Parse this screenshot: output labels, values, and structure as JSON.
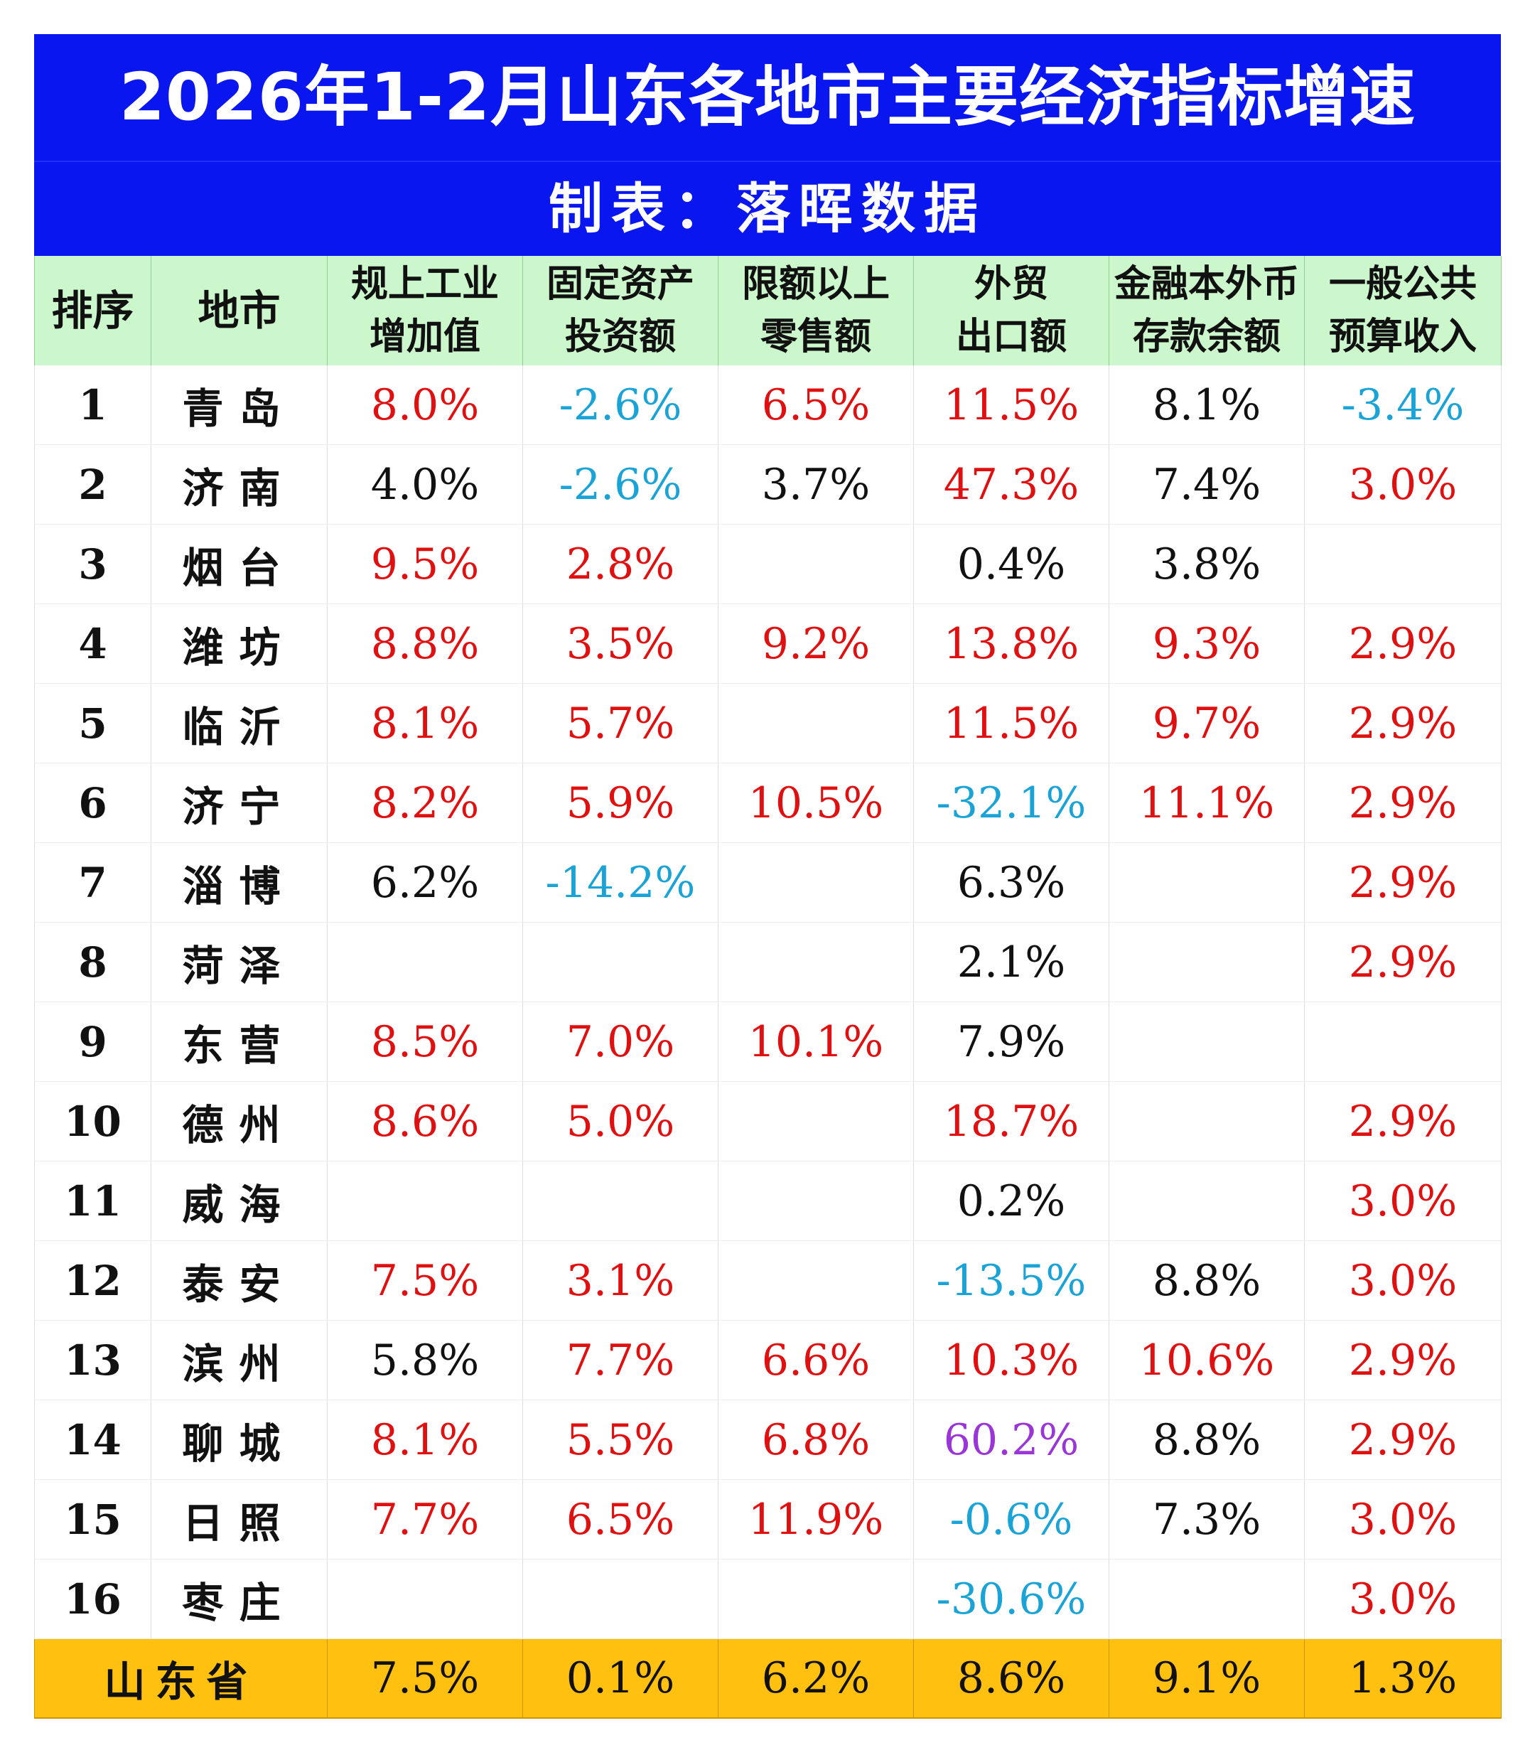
{
  "title": "2026年1-2月山东各地市主要经济指标增速",
  "subtitle": "制表：落晖数据",
  "colors": {
    "banner": "#0a16f0",
    "header": "#ccf7cc",
    "footer": "#ffc010",
    "positive": "#e01010",
    "negative": "#1aa3d6",
    "neutral": "#111111",
    "highlight": "#9a35d8"
  },
  "headers": [
    {
      "line1": "排序",
      "line2": ""
    },
    {
      "line1": "地市",
      "line2": ""
    },
    {
      "line1": "规上工业",
      "line2": "增加值"
    },
    {
      "line1": "固定资产",
      "line2": "投资额"
    },
    {
      "line1": "限额以上",
      "line2": "零售额"
    },
    {
      "line1": "外贸",
      "line2": "出口额"
    },
    {
      "line1": "金融本外币",
      "line2": "存款余额"
    },
    {
      "line1": "一般公共",
      "line2": "预算收入"
    }
  ],
  "rows": [
    {
      "rank": "1",
      "city": "青岛",
      "cells": [
        {
          "v": "8.0%",
          "c": "pos"
        },
        {
          "v": "-2.6%",
          "c": "neg"
        },
        {
          "v": "6.5%",
          "c": "pos"
        },
        {
          "v": "11.5%",
          "c": "pos"
        },
        {
          "v": "8.1%",
          "c": "blk"
        },
        {
          "v": "-3.4%",
          "c": "neg"
        }
      ]
    },
    {
      "rank": "2",
      "city": "济南",
      "cells": [
        {
          "v": "4.0%",
          "c": "blk"
        },
        {
          "v": "-2.6%",
          "c": "neg"
        },
        {
          "v": "3.7%",
          "c": "blk"
        },
        {
          "v": "47.3%",
          "c": "pos"
        },
        {
          "v": "7.4%",
          "c": "blk"
        },
        {
          "v": "3.0%",
          "c": "pos"
        }
      ]
    },
    {
      "rank": "3",
      "city": "烟台",
      "cells": [
        {
          "v": "9.5%",
          "c": "pos"
        },
        {
          "v": "2.8%",
          "c": "pos"
        },
        {
          "v": "",
          "c": "blk"
        },
        {
          "v": "0.4%",
          "c": "blk"
        },
        {
          "v": "3.8%",
          "c": "blk"
        },
        {
          "v": "",
          "c": "blk"
        }
      ]
    },
    {
      "rank": "4",
      "city": "潍坊",
      "cells": [
        {
          "v": "8.8%",
          "c": "pos"
        },
        {
          "v": "3.5%",
          "c": "pos"
        },
        {
          "v": "9.2%",
          "c": "pos"
        },
        {
          "v": "13.8%",
          "c": "pos"
        },
        {
          "v": "9.3%",
          "c": "pos"
        },
        {
          "v": "2.9%",
          "c": "pos"
        }
      ]
    },
    {
      "rank": "5",
      "city": "临沂",
      "cells": [
        {
          "v": "8.1%",
          "c": "pos"
        },
        {
          "v": "5.7%",
          "c": "pos"
        },
        {
          "v": "",
          "c": "blk"
        },
        {
          "v": "11.5%",
          "c": "pos"
        },
        {
          "v": "9.7%",
          "c": "pos"
        },
        {
          "v": "2.9%",
          "c": "pos"
        }
      ]
    },
    {
      "rank": "6",
      "city": "济宁",
      "cells": [
        {
          "v": "8.2%",
          "c": "pos"
        },
        {
          "v": "5.9%",
          "c": "pos"
        },
        {
          "v": "10.5%",
          "c": "pos"
        },
        {
          "v": "-32.1%",
          "c": "neg"
        },
        {
          "v": "11.1%",
          "c": "pos"
        },
        {
          "v": "2.9%",
          "c": "pos"
        }
      ]
    },
    {
      "rank": "7",
      "city": "淄博",
      "cells": [
        {
          "v": "6.2%",
          "c": "blk"
        },
        {
          "v": "-14.2%",
          "c": "neg"
        },
        {
          "v": "",
          "c": "blk"
        },
        {
          "v": "6.3%",
          "c": "blk"
        },
        {
          "v": "",
          "c": "blk"
        },
        {
          "v": "2.9%",
          "c": "pos"
        }
      ]
    },
    {
      "rank": "8",
      "city": "菏泽",
      "cells": [
        {
          "v": "",
          "c": "blk"
        },
        {
          "v": "",
          "c": "blk"
        },
        {
          "v": "",
          "c": "blk"
        },
        {
          "v": "2.1%",
          "c": "blk"
        },
        {
          "v": "",
          "c": "blk"
        },
        {
          "v": "2.9%",
          "c": "pos"
        }
      ]
    },
    {
      "rank": "9",
      "city": "东营",
      "cells": [
        {
          "v": "8.5%",
          "c": "pos"
        },
        {
          "v": "7.0%",
          "c": "pos"
        },
        {
          "v": "10.1%",
          "c": "pos"
        },
        {
          "v": "7.9%",
          "c": "blk"
        },
        {
          "v": "",
          "c": "blk"
        },
        {
          "v": "",
          "c": "blk"
        }
      ]
    },
    {
      "rank": "10",
      "city": "德州",
      "cells": [
        {
          "v": "8.6%",
          "c": "pos"
        },
        {
          "v": "5.0%",
          "c": "pos"
        },
        {
          "v": "",
          "c": "blk"
        },
        {
          "v": "18.7%",
          "c": "pos"
        },
        {
          "v": "",
          "c": "blk"
        },
        {
          "v": "2.9%",
          "c": "pos"
        }
      ]
    },
    {
      "rank": "11",
      "city": "威海",
      "cells": [
        {
          "v": "",
          "c": "blk"
        },
        {
          "v": "",
          "c": "blk"
        },
        {
          "v": "",
          "c": "blk"
        },
        {
          "v": "0.2%",
          "c": "blk"
        },
        {
          "v": "",
          "c": "blk"
        },
        {
          "v": "3.0%",
          "c": "pos"
        }
      ]
    },
    {
      "rank": "12",
      "city": "泰安",
      "cells": [
        {
          "v": "7.5%",
          "c": "pos"
        },
        {
          "v": "3.1%",
          "c": "pos"
        },
        {
          "v": "",
          "c": "blk"
        },
        {
          "v": "-13.5%",
          "c": "neg"
        },
        {
          "v": "8.8%",
          "c": "blk"
        },
        {
          "v": "3.0%",
          "c": "pos"
        }
      ]
    },
    {
      "rank": "13",
      "city": "滨州",
      "cells": [
        {
          "v": "5.8%",
          "c": "blk"
        },
        {
          "v": "7.7%",
          "c": "pos"
        },
        {
          "v": "6.6%",
          "c": "pos"
        },
        {
          "v": "10.3%",
          "c": "pos"
        },
        {
          "v": "10.6%",
          "c": "pos"
        },
        {
          "v": "2.9%",
          "c": "pos"
        }
      ]
    },
    {
      "rank": "14",
      "city": "聊城",
      "cells": [
        {
          "v": "8.1%",
          "c": "pos"
        },
        {
          "v": "5.5%",
          "c": "pos"
        },
        {
          "v": "6.8%",
          "c": "pos"
        },
        {
          "v": "60.2%",
          "c": "pur"
        },
        {
          "v": "8.8%",
          "c": "blk"
        },
        {
          "v": "2.9%",
          "c": "pos"
        }
      ]
    },
    {
      "rank": "15",
      "city": "日照",
      "cells": [
        {
          "v": "7.7%",
          "c": "pos"
        },
        {
          "v": "6.5%",
          "c": "pos"
        },
        {
          "v": "11.9%",
          "c": "pos"
        },
        {
          "v": "-0.6%",
          "c": "neg"
        },
        {
          "v": "7.3%",
          "c": "blk"
        },
        {
          "v": "3.0%",
          "c": "pos"
        }
      ]
    },
    {
      "rank": "16",
      "city": "枣庄",
      "cells": [
        {
          "v": "",
          "c": "blk"
        },
        {
          "v": "",
          "c": "blk"
        },
        {
          "v": "",
          "c": "blk"
        },
        {
          "v": "-30.6%",
          "c": "neg"
        },
        {
          "v": "",
          "c": "blk"
        },
        {
          "v": "3.0%",
          "c": "pos"
        }
      ]
    }
  ],
  "total": {
    "label": "山东省",
    "cells": [
      "7.5%",
      "0.1%",
      "6.2%",
      "8.6%",
      "9.1%",
      "1.3%"
    ]
  }
}
